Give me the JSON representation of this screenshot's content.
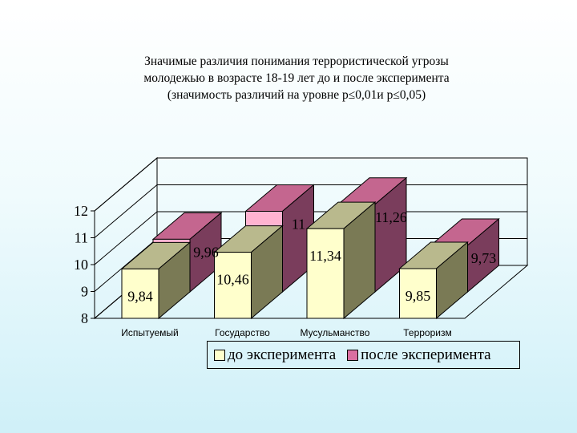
{
  "chart_data": {
    "type": "bar",
    "title_lines": [
      "Значимые различия понимания террористической угрозы",
      "молодежью в возрасте 18-19 лет до и после эксперимента",
      "(значимость различий на уровне p≤0,01и p≤0,05)"
    ],
    "categories": [
      "Испытуемый",
      "Государство",
      "Мусульманство",
      "Терроризм"
    ],
    "series": [
      {
        "name": "до эксперимента",
        "values": [
          9.84,
          10.46,
          11.34,
          9.85
        ],
        "labels": [
          "9,84",
          "10,46",
          "11,34",
          "9,85"
        ]
      },
      {
        "name": "после эксперимента",
        "values": [
          9.96,
          11,
          11.26,
          9.73
        ],
        "labels": [
          "9,96",
          "11",
          "11,26",
          "9,73"
        ]
      }
    ],
    "yticks": [
      "8",
      "9",
      "10",
      "11",
      "12"
    ],
    "ylim": [
      8,
      12
    ],
    "legend_position": "bottom",
    "colors": {
      "front_face": "#ffffcc",
      "side_face": "#7a7a55",
      "top_face": "#b9b98d",
      "back_front": "#ffb3d1",
      "back_side": "#7a3d5c",
      "back_top": "#c4668f",
      "legend_before": "#ffffcc",
      "legend_after": "#d96fa1"
    }
  }
}
